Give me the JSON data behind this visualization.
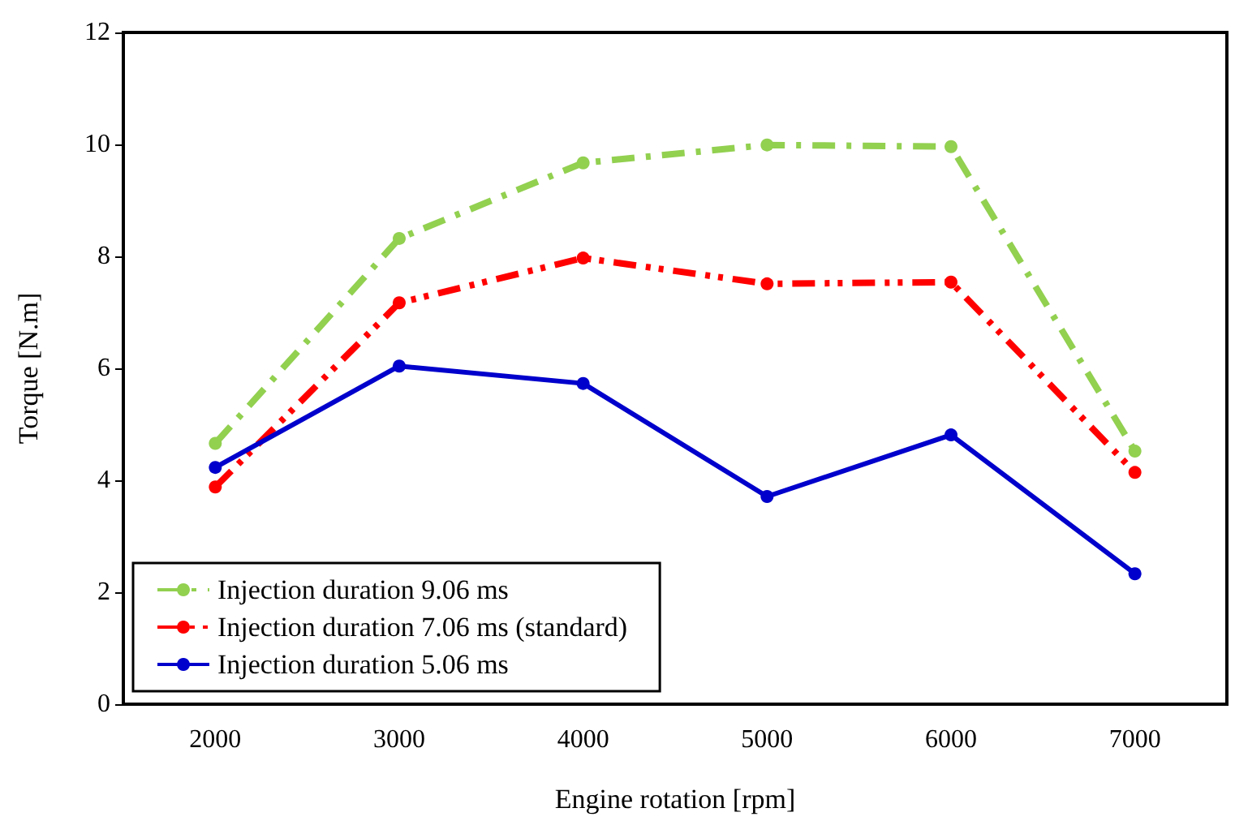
{
  "chart_data": {
    "type": "line",
    "xlabel": "Engine rotation [rpm]",
    "ylabel": "Torque [N.m]",
    "categories": [
      "2000",
      "3000",
      "4000",
      "5000",
      "6000",
      "7000"
    ],
    "series": [
      {
        "name": "Injection duration 9.06 ms",
        "color": "#92d050",
        "line_style": "dashed",
        "values": [
          4.66,
          8.32,
          9.67,
          9.99,
          9.96,
          4.52
        ]
      },
      {
        "name": "Injection duration 7.06 ms (standard)",
        "color": "#ff0000",
        "line_style": "dotted",
        "values": [
          3.88,
          7.17,
          7.97,
          7.51,
          7.54,
          4.14
        ]
      },
      {
        "name": "Injection duration 5.06 ms",
        "color": "#0000cc",
        "line_style": "solid",
        "values": [
          4.23,
          6.04,
          5.73,
          3.71,
          4.81,
          2.33
        ]
      }
    ],
    "ylim": [
      0,
      12
    ],
    "yticks": [
      0,
      2,
      4,
      6,
      8,
      10,
      12
    ],
    "grid": false,
    "legend": "bottom left",
    "marker": "circle"
  }
}
